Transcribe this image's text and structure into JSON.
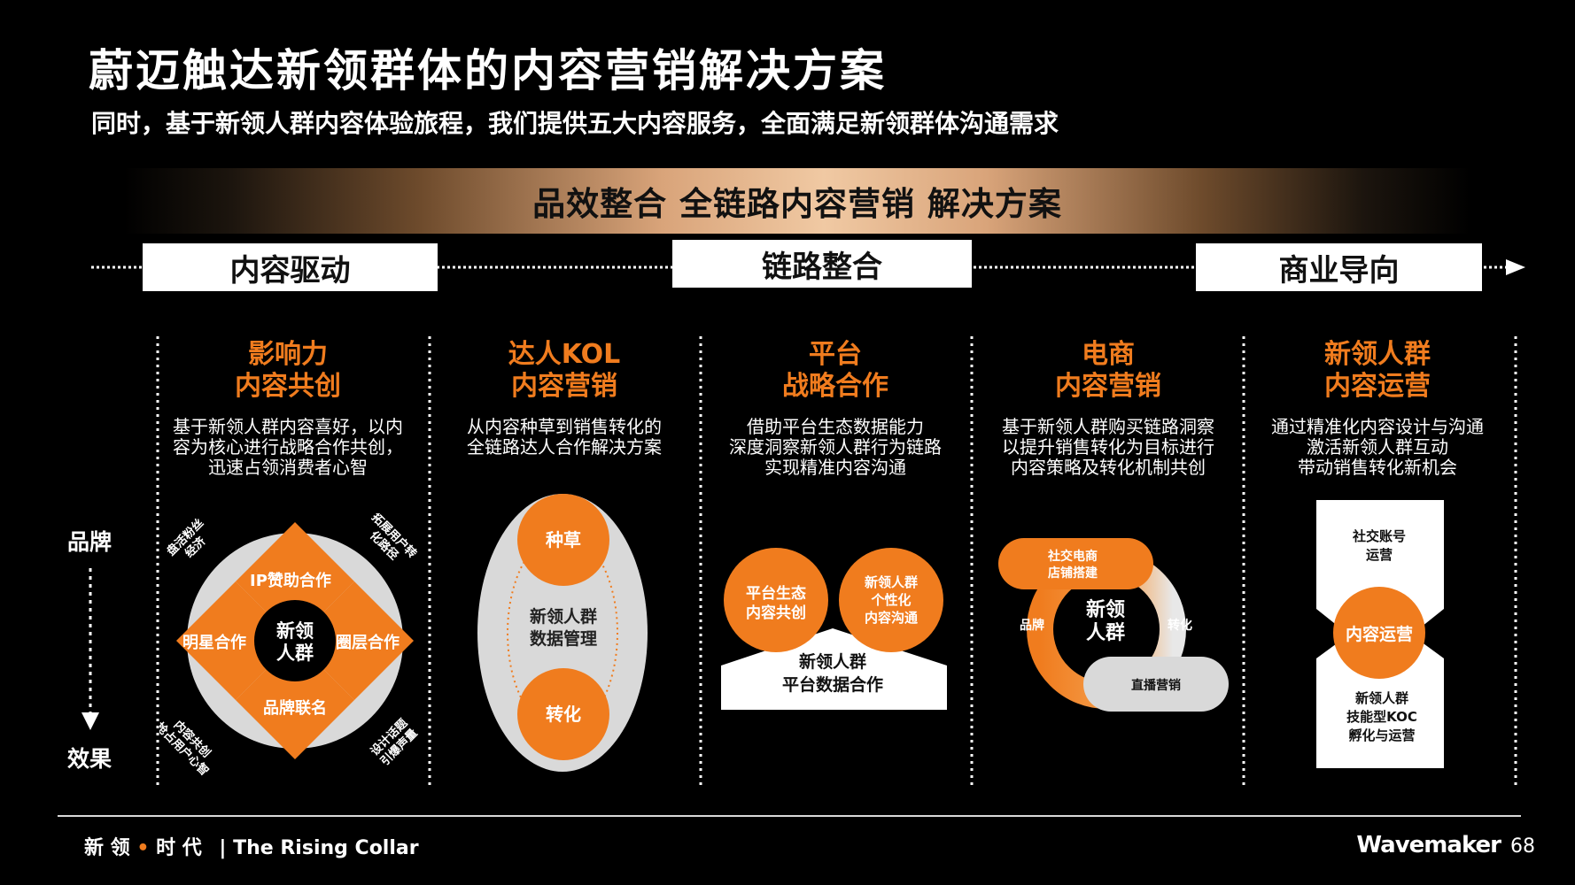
{
  "title": "蔚迈触达新领群体的内容营销解决方案",
  "subtitle": "同时，基于新领人群内容体验旅程，我们提供五大内容服务，全面满足新领群体沟通需求",
  "banner": "品效整合 全链路内容营销 解决方案",
  "phases": [
    "内容驱动",
    "链路整合",
    "商业导向"
  ],
  "axis": {
    "top": "品牌",
    "bottom": "效果"
  },
  "columns": [
    {
      "title1": "影响力",
      "title2": "内容共创",
      "desc": [
        "基于新领人群内容喜好，以内",
        "容为核心进行战略合作共创，",
        "迅速占领消费者心智"
      ]
    },
    {
      "title1": "达人KOL",
      "title2": "内容营销",
      "desc": [
        "从内容种草到销售转化的",
        "全链路达人合作解决方案"
      ]
    },
    {
      "title1": "平台",
      "title2": "战略合作",
      "desc": [
        "借助平台生态数据能力",
        "深度洞察新领人群行为链路",
        "实现精准内容沟通"
      ]
    },
    {
      "title1": "电商",
      "title2": "内容营销",
      "desc": [
        "基于新领人群购买链路洞察",
        "以提升销售转化为目标进行",
        "内容策略及转化机制共创"
      ]
    },
    {
      "title1": "新领人群",
      "title2": "内容运营",
      "desc": [
        "通过精准化内容设计与沟通",
        "激活新领人群互动",
        "带动销售转化新机会"
      ]
    }
  ],
  "diagram1": {
    "center": [
      "新领",
      "人群"
    ],
    "top": "IP赞助合作",
    "left": "明星合作",
    "right": "圈层合作",
    "bottom": "品牌联名",
    "corner_tl": [
      "盘活粉丝",
      "经济"
    ],
    "corner_tr": [
      "拓展用户转",
      "化路径"
    ],
    "corner_bl": [
      "内容共创",
      "抢占用户心智"
    ],
    "corner_br": [
      "设计话题",
      "引爆声量"
    ]
  },
  "diagram2": {
    "top": "种草",
    "middle": [
      "新领人群",
      "数据管理"
    ],
    "bottom": "转化"
  },
  "diagram3": {
    "left": [
      "平台生态",
      "内容共创"
    ],
    "right": [
      "新领人群",
      "个性化",
      "内容沟通"
    ],
    "base": [
      "新领人群",
      "平台数据合作"
    ]
  },
  "diagram4": {
    "top": [
      "社交电商",
      "店铺搭建"
    ],
    "center": [
      "新领",
      "人群"
    ],
    "left": "品牌",
    "right": "转化",
    "bottom": "直播营销"
  },
  "diagram5": {
    "top": [
      "社交账号",
      "运营"
    ],
    "center": "内容运营",
    "bottom": [
      "新领人群",
      "技能型KOC",
      "孵化与运营"
    ]
  },
  "footer": {
    "left_a": "新 领",
    "left_dot": "•",
    "left_b": "时 代",
    "left_c": "| The Rising Collar",
    "brand": "Wavemaker",
    "page": "68"
  },
  "colors": {
    "accent": "#f07c1e",
    "background": "#000000"
  }
}
